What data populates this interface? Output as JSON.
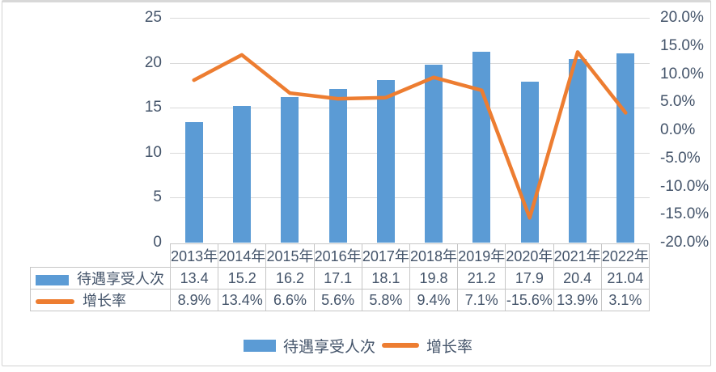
{
  "chart_data": {
    "type": "combo-bar-line",
    "title": "",
    "categories": [
      "2013年",
      "2014年",
      "2015年",
      "2016年",
      "2017年",
      "2018年",
      "2019年",
      "2020年",
      "2021年",
      "2022年"
    ],
    "series": [
      {
        "name": "待遇享受人次",
        "type": "bar",
        "axis": "left",
        "color": "#5B9BD5",
        "values": [
          13.4,
          15.2,
          16.2,
          17.1,
          18.1,
          19.8,
          21.2,
          17.9,
          20.4,
          21.04
        ],
        "labels": [
          "13.4",
          "15.2",
          "16.2",
          "17.1",
          "18.1",
          "19.8",
          "21.2",
          "17.9",
          "20.4",
          "21.04"
        ]
      },
      {
        "name": "增长率",
        "type": "line",
        "axis": "right",
        "color": "#ED7D31",
        "values": [
          8.9,
          13.4,
          6.6,
          5.6,
          5.8,
          9.4,
          7.1,
          -15.6,
          13.9,
          3.1
        ],
        "labels": [
          "8.9%",
          "13.4%",
          "6.6%",
          "5.6%",
          "5.8%",
          "9.4%",
          "7.1%",
          "-15.6%",
          "13.9%",
          "3.1%"
        ]
      }
    ],
    "left_axis": {
      "min": 0,
      "max": 25,
      "ticks": [
        "25",
        "20",
        "15",
        "10",
        "5",
        "0"
      ]
    },
    "right_axis": {
      "min": -20,
      "max": 20,
      "ticks": [
        "20.0%",
        "15.0%",
        "10.0%",
        "5.0%",
        "0.0%",
        "-5.0%",
        "-10.0%",
        "-15.0%",
        "-20.0%"
      ]
    },
    "grid": true,
    "legend_position": "bottom",
    "data_table_visible": true
  },
  "colors": {
    "bar": "#5B9BD5",
    "line": "#ED7D31",
    "text": "#44546A",
    "gridline": "#D9D9D9",
    "table_border": "#C6C6C6",
    "frame_border": "#D2D2D2"
  }
}
